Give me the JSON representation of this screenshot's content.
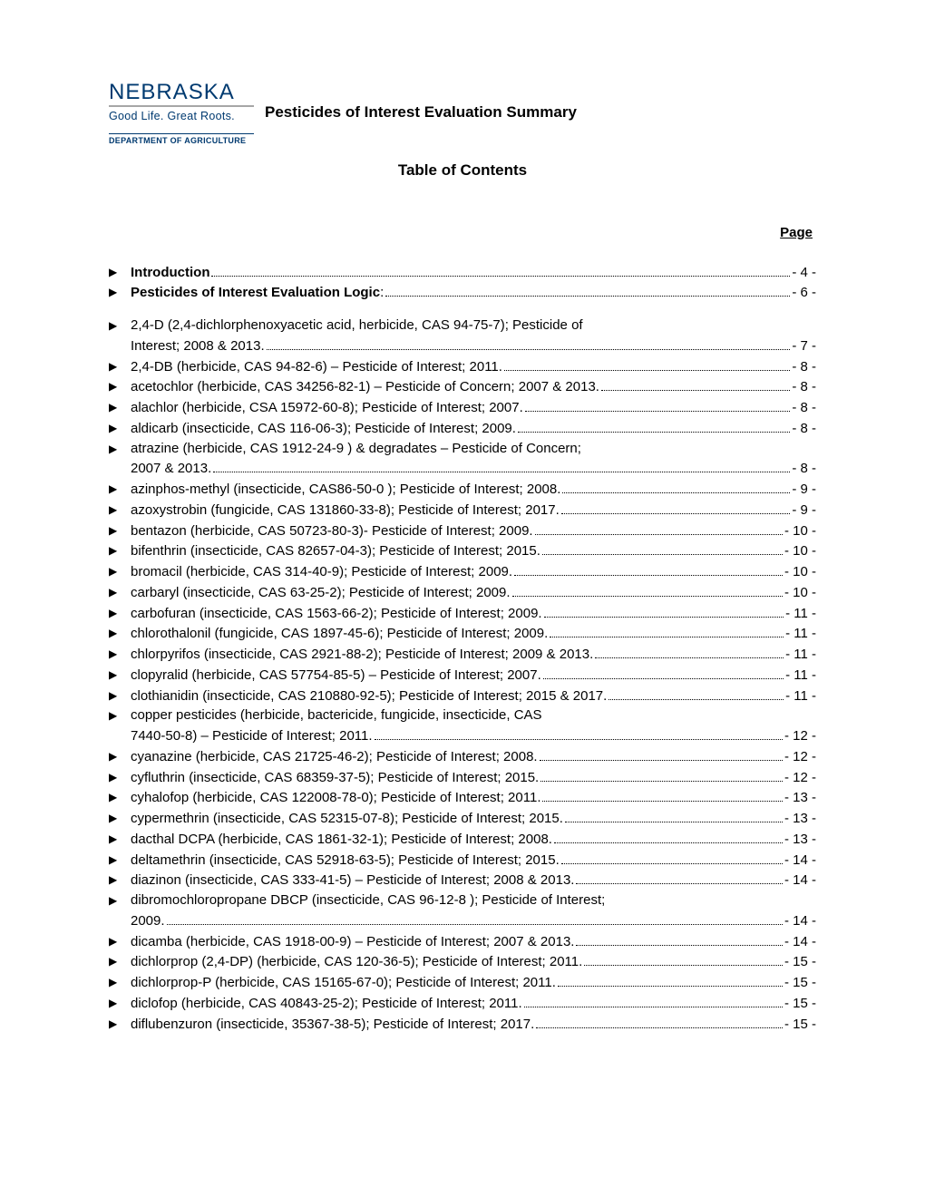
{
  "logo": {
    "main": "NEBRASKA",
    "tagline": "Good Life. Great Roots.",
    "dept": "DEPARTMENT OF AGRICULTURE",
    "color_main": "#003a70"
  },
  "doc_title": "Pesticides of Interest Evaluation Summary",
  "toc_title": "Table of Contents",
  "page_label": "Page",
  "colors": {
    "background": "#ffffff",
    "text": "#000000",
    "logo_blue": "#003a70",
    "rule_gray": "#a6a6a6"
  },
  "typography": {
    "body_fontsize": 15,
    "title_fontsize": 17,
    "logo_main_fontsize": 24,
    "logo_tagline_fontsize": 12.5,
    "logo_dept_fontsize": 9
  },
  "entries": [
    {
      "text": "Introduction",
      "page": "- 4 -",
      "bold": true
    },
    {
      "text_pre": "Pesticides of Interest Evaluation Logic",
      "text_post": ":",
      "page": "- 6 -",
      "bold": true,
      "gap_after": true
    },
    {
      "wrap_first": "2,4-D (2,4-dichlorphenoxyacetic acid, herbicide, CAS 94-75-7); Pesticide of",
      "wrap_last": "Interest; 2008 & 2013.",
      "page": "- 7 -"
    },
    {
      "text": "2,4-DB (herbicide, CAS 94-82-6) – Pesticide of Interest; 2011.",
      "page": "- 8 -"
    },
    {
      "text": "acetochlor (herbicide, CAS 34256-82-1) – Pesticide of Concern; 2007 & 2013.",
      "page": "- 8 -"
    },
    {
      "text": "alachlor (herbicide, CSA 15972-60-8); Pesticide of Interest; 2007.",
      "page": "- 8 -"
    },
    {
      "text": "aldicarb (insecticide, CAS 116-06-3); Pesticide of Interest; 2009.",
      "page": "- 8 -"
    },
    {
      "wrap_first": "atrazine (herbicide, CAS 1912-24-9 ) & degradates – Pesticide of Concern;",
      "wrap_last": "2007 & 2013.",
      "page": "- 8 -"
    },
    {
      "text": "azinphos-methyl (insecticide, CAS86-50-0 ); Pesticide of Interest; 2008.",
      "page": "- 9 -"
    },
    {
      "text": "azoxystrobin (fungicide, CAS 131860-33-8); Pesticide of Interest; 2017.",
      "page": "- 9 -"
    },
    {
      "text": "bentazon (herbicide, CAS 50723-80-3)- Pesticide of Interest; 2009.",
      "page": "- 10 -"
    },
    {
      "text": "bifenthrin (insecticide, CAS 82657-04-3); Pesticide of Interest; 2015.",
      "page": "- 10 -"
    },
    {
      "text": "bromacil (herbicide, CAS 314-40-9); Pesticide of Interest; 2009.",
      "page": "- 10 -"
    },
    {
      "text": "carbaryl (insecticide, CAS 63-25-2); Pesticide of Interest; 2009.",
      "page": "- 10 -"
    },
    {
      "text": "carbofuran (insecticide, CAS 1563-66-2); Pesticide of Interest; 2009.",
      "page": "- 11 -"
    },
    {
      "text": "chlorothalonil (fungicide, CAS 1897-45-6); Pesticide of Interest; 2009.",
      "page": "- 11 -"
    },
    {
      "text": "chlorpyrifos (insecticide, CAS 2921-88-2); Pesticide of Interest; 2009 & 2013.",
      "page": "- 11 -"
    },
    {
      "text": "clopyralid (herbicide, CAS 57754-85-5) – Pesticide of Interest; 2007.",
      "page": "- 11 -"
    },
    {
      "text": "clothianidin (insecticide, CAS 210880-92-5); Pesticide of Interest; 2015 & 2017.",
      "page": "- 11 -"
    },
    {
      "wrap_first": "copper pesticides (herbicide, bactericide, fungicide, insecticide, CAS",
      "wrap_last": "7440-50-8) – Pesticide of Interest; 2011.",
      "page": "- 12 -"
    },
    {
      "text": "cyanazine (herbicide, CAS 21725-46-2); Pesticide of Interest; 2008.",
      "page": "- 12 -"
    },
    {
      "text": "cyfluthrin (insecticide, CAS 68359-37-5); Pesticide of Interest; 2015.",
      "page": "- 12 -"
    },
    {
      "text": "cyhalofop (herbicide, CAS 122008-78-0); Pesticide of Interest; 2011.",
      "page": "- 13 -"
    },
    {
      "text": "cypermethrin (insecticide, CAS 52315-07-8); Pesticide of Interest; 2015.",
      "page": "- 13 -"
    },
    {
      "text": "dacthal  DCPA (herbicide, CAS 1861-32-1); Pesticide of Interest; 2008.",
      "page": "- 13 -"
    },
    {
      "text": "deltamethrin (insecticide, CAS 52918-63-5); Pesticide of Interest; 2015.",
      "page": "- 14 -"
    },
    {
      "text": "diazinon (insecticide, CAS 333-41-5) – Pesticide of Interest; 2008 & 2013.",
      "page": "- 14 -"
    },
    {
      "wrap_first": "dibromochloropropane DBCP (insecticide, CAS 96-12-8 ); Pesticide of Interest;",
      "wrap_last": "2009.",
      "page": "- 14 -"
    },
    {
      "text": "dicamba (herbicide, CAS 1918-00-9) – Pesticide of Interest; 2007 & 2013.",
      "page": "- 14 -"
    },
    {
      "text": "dichlorprop (2,4-DP) (herbicide, CAS 120-36-5); Pesticide of Interest; 2011.",
      "page": "- 15 -"
    },
    {
      "text": "dichlorprop-P (herbicide, CAS 15165-67-0); Pesticide of Interest; 2011.",
      "page": "- 15 -"
    },
    {
      "text": "diclofop (herbicide, CAS 40843-25-2); Pesticide of Interest; 2011.",
      "page": "- 15 -"
    },
    {
      "text": "diflubenzuron (insecticide, 35367-38-5); Pesticide of Interest; 2017.",
      "page": "- 15 -"
    }
  ]
}
